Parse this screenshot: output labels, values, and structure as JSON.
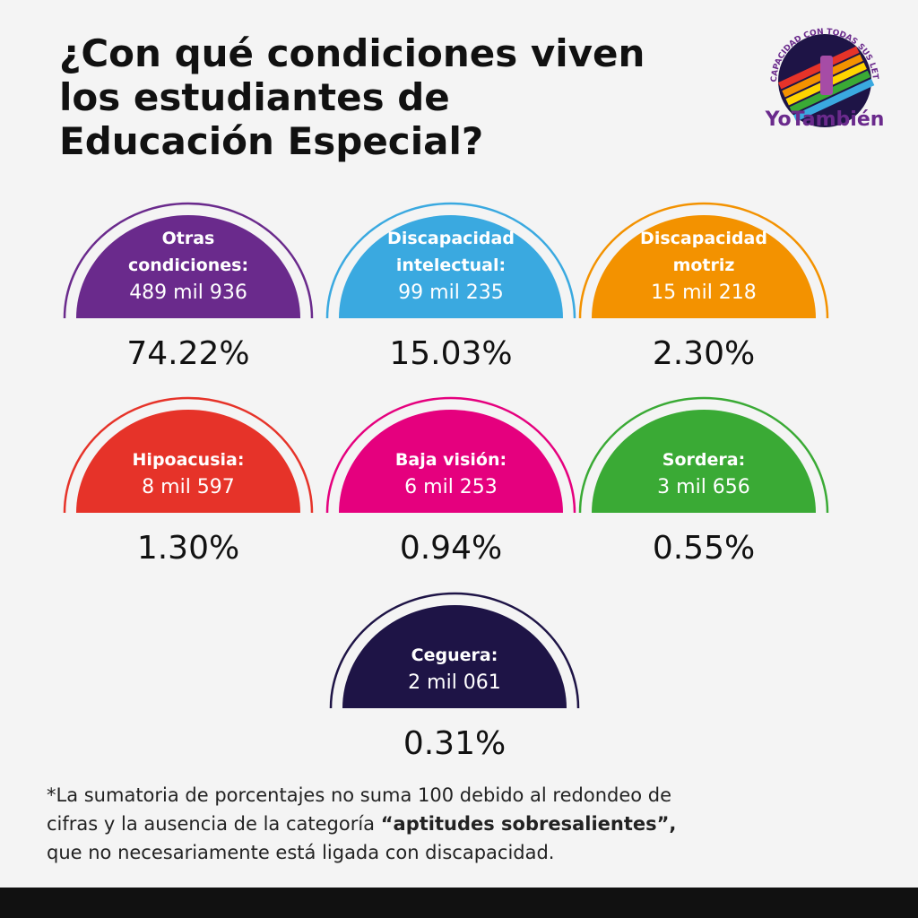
{
  "header": {
    "title_lines": [
      "¿Con qué condiciones viven",
      "los estudiantes de",
      "Educación Especial?"
    ]
  },
  "logo": {
    "tagline": "DISCAPACIDAD CON TODAS SUS LETRAS",
    "brand": "YoTambién"
  },
  "cards": [
    {
      "label_lines": [
        "Otras",
        "condiciones:"
      ],
      "count": "489 mil 936",
      "percent": "74.22%",
      "color": "#6a2a8c"
    },
    {
      "label_lines": [
        "Discapacidad",
        "intelectual:"
      ],
      "count": "99 mil 235",
      "percent": "15.03%",
      "color": "#3aa9e0"
    },
    {
      "label_lines": [
        "Discapacidad",
        "motriz"
      ],
      "count": "15 mil 218",
      "percent": "2.30%",
      "color": "#f39200"
    },
    {
      "label_lines": [
        "Hipoacusia:"
      ],
      "count": "8 mil 597",
      "percent": "1.30%",
      "color": "#e63329"
    },
    {
      "label_lines": [
        "Baja visión:"
      ],
      "count": "6 mil 253",
      "percent": "0.94%",
      "color": "#e5007e"
    },
    {
      "label_lines": [
        "Sordera:"
      ],
      "count": "3 mil 656",
      "percent": "0.55%",
      "color": "#3aaa35"
    },
    {
      "label_lines": [
        "Ceguera:"
      ],
      "count": "2 mil 061",
      "percent": "0.31%",
      "color": "#1e1446"
    }
  ],
  "footnote": {
    "line1": "*La sumatoria de porcentajes no suma 100 debido al redondeo de",
    "line2": "cifras y la ausencia de la categoría ",
    "bold": "“aptitudes sobresalientes”,",
    "line3": "que no necesariamente está ligada con discapacidad."
  }
}
